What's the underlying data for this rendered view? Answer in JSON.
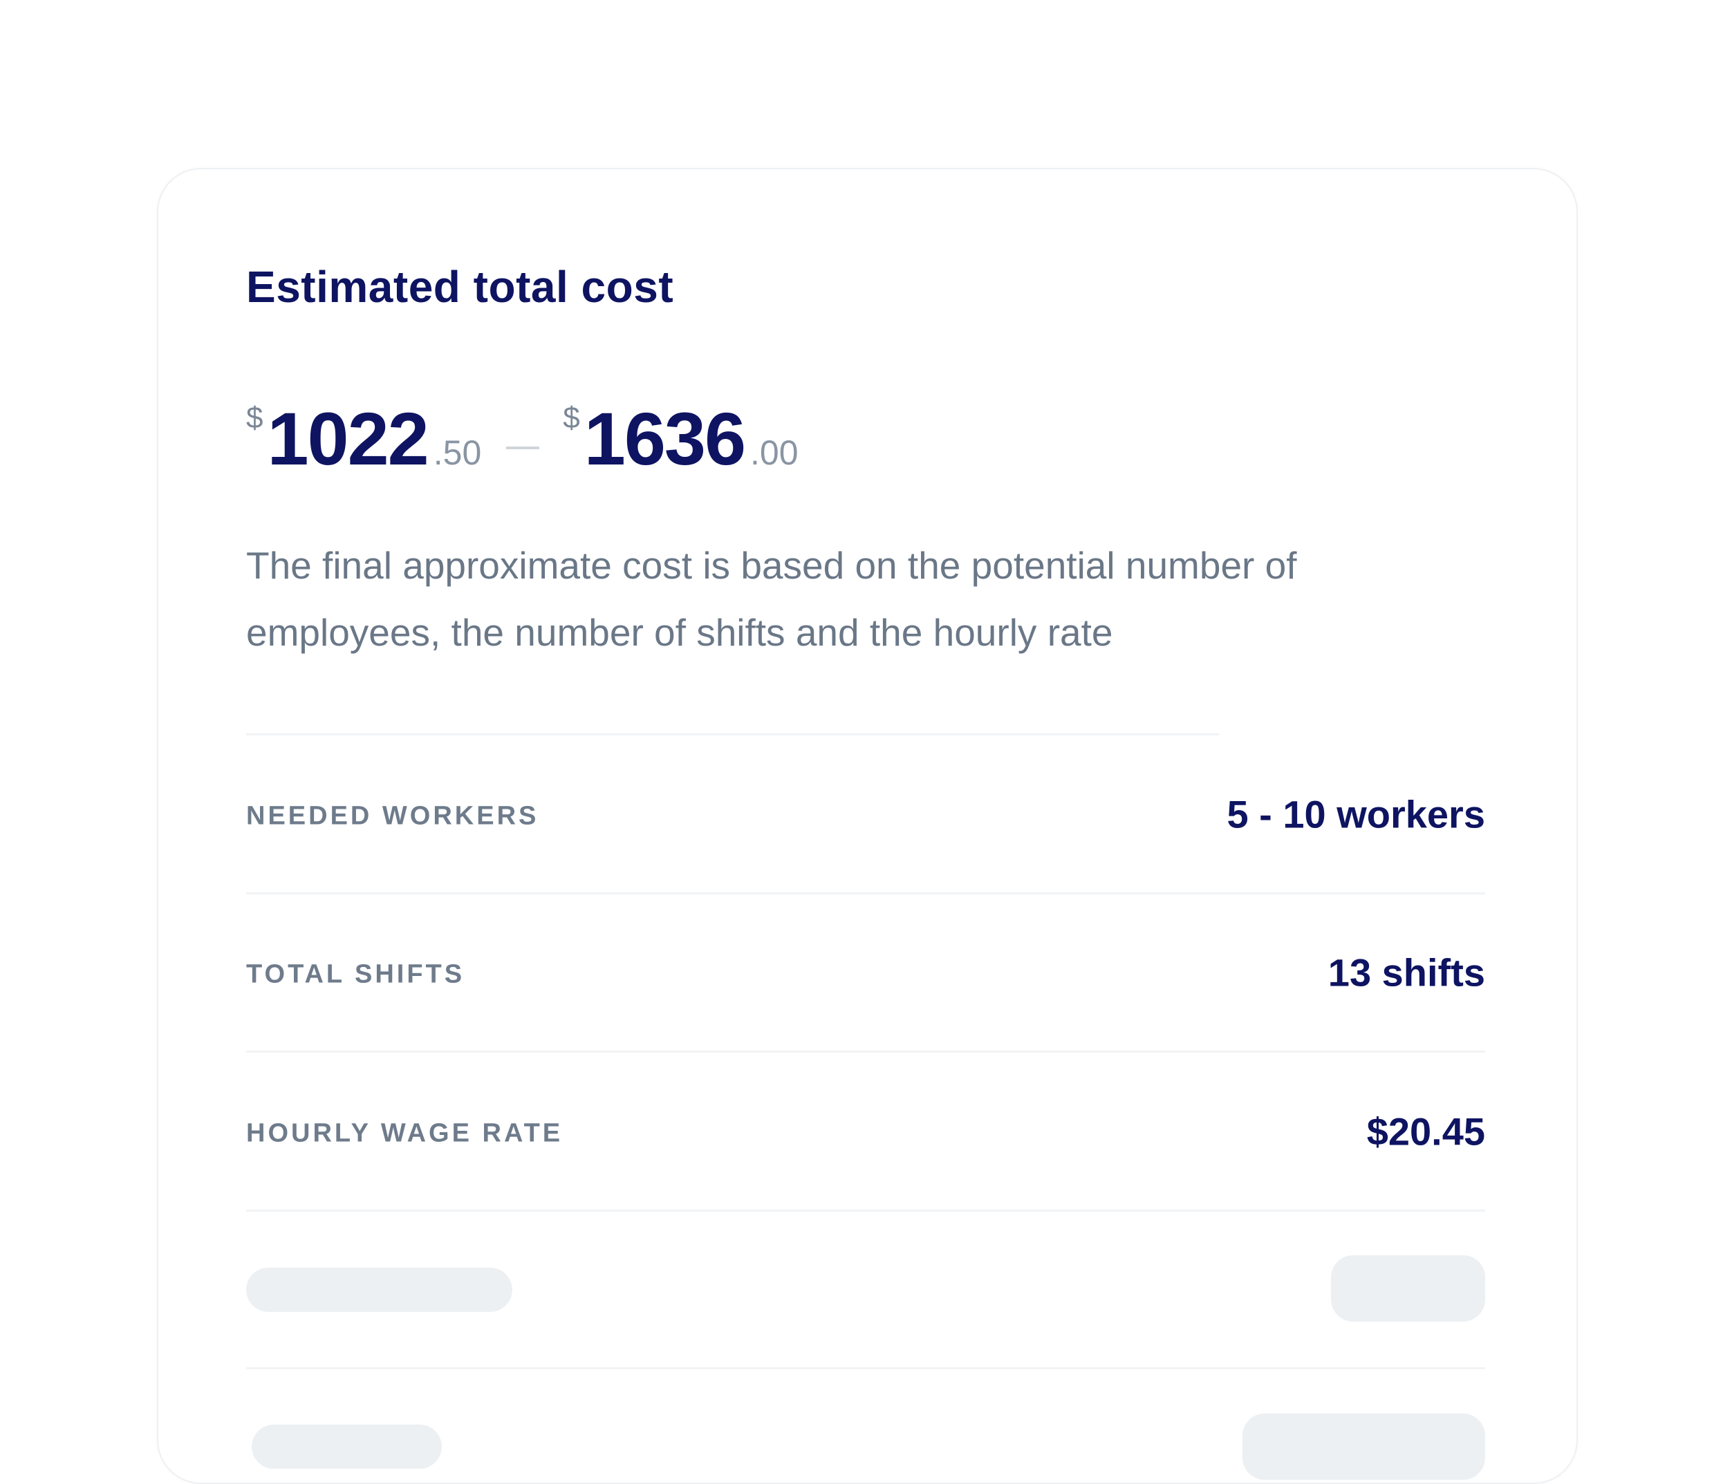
{
  "card": {
    "title": "Estimated total cost",
    "price_min": {
      "currency": "$",
      "integer": "1022",
      "decimal": ".50"
    },
    "price_max": {
      "currency": "$",
      "integer": "1636",
      "decimal": ".00"
    },
    "description": "The final approximate cost is based on the potential number of employees, the number of shifts and the hourly rate",
    "rows": [
      {
        "label": "NEEDED WORKERS",
        "value": "5 - 10 workers"
      },
      {
        "label": "TOTAL SHIFTS",
        "value": "13 shifts"
      },
      {
        "label": "HOURLY WAGE RATE",
        "value": "$20.45"
      }
    ]
  },
  "colors": {
    "primary_text": "#0e1461",
    "secondary_text": "#6a7787",
    "skeleton": "#edf0f2"
  }
}
